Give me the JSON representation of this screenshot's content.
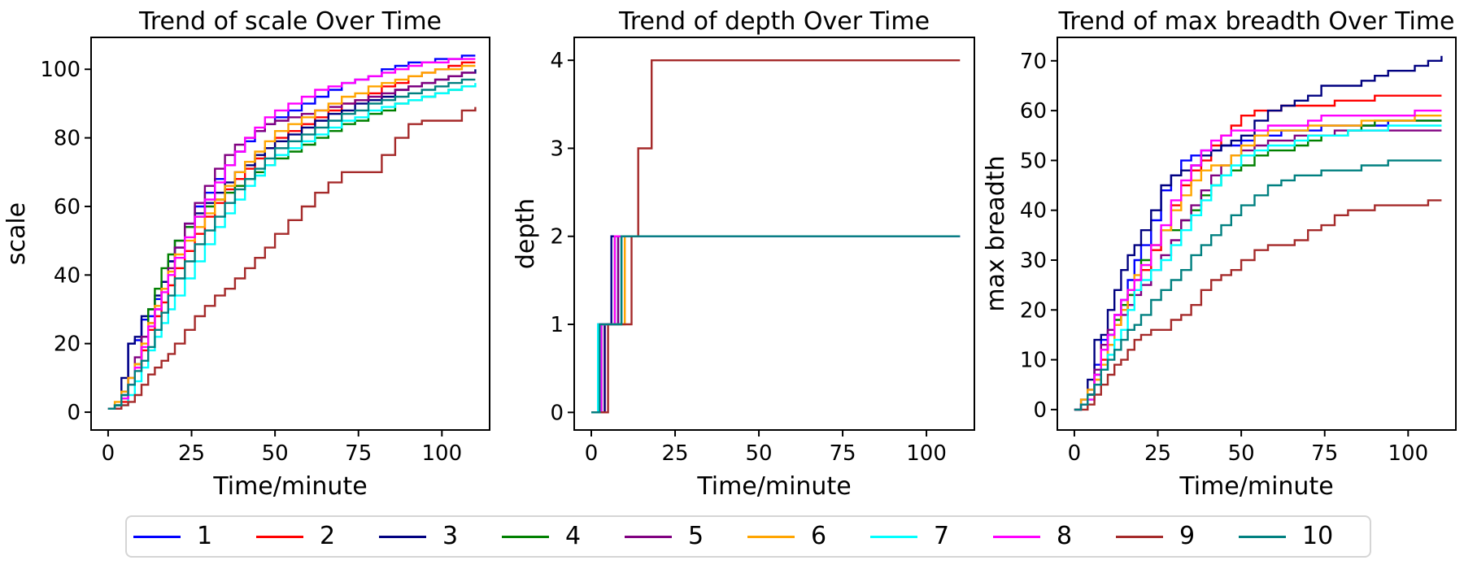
{
  "figure": {
    "background": "#ffffff",
    "xlabel": "Time/minute"
  },
  "legend": {
    "items": [
      {
        "label": "1",
        "color": "#0000ff"
      },
      {
        "label": "2",
        "color": "#ff0000"
      },
      {
        "label": "3",
        "color": "#000080"
      },
      {
        "label": "4",
        "color": "#008000"
      },
      {
        "label": "5",
        "color": "#800080"
      },
      {
        "label": "6",
        "color": "#ffa500"
      },
      {
        "label": "7",
        "color": "#00ffff"
      },
      {
        "label": "8",
        "color": "#ff00ff"
      },
      {
        "label": "9",
        "color": "#a52a2a"
      },
      {
        "label": "10",
        "color": "#008080"
      }
    ]
  },
  "chart_data": [
    {
      "type": "line",
      "step": true,
      "title": "Trend of scale Over Time",
      "xlabel": "Time/minute",
      "ylabel": "scale",
      "xlim": [
        -5.1,
        114.3
      ],
      "ylim": [
        -5.2,
        109.3
      ],
      "xticks": [
        0,
        25,
        50,
        75,
        100
      ],
      "yticks": [
        0,
        20,
        40,
        60,
        80,
        100
      ],
      "x": [
        0,
        2,
        4,
        6,
        8,
        10,
        12,
        14,
        16,
        18,
        20,
        23,
        26,
        29,
        32,
        35,
        38,
        41,
        44,
        47,
        50,
        54,
        58,
        62,
        66,
        70,
        74,
        78,
        82,
        86,
        90,
        94,
        98,
        102,
        106,
        110
      ],
      "series": [
        {
          "name": "1",
          "color": "#0000ff",
          "y": [
            1,
            1,
            6,
            20,
            21,
            27,
            28,
            33,
            38,
            44,
            48,
            55,
            60,
            64,
            68,
            72,
            76,
            79,
            82,
            84,
            86,
            88,
            90,
            92,
            94,
            96,
            97,
            98,
            100,
            101,
            102,
            102,
            103,
            103,
            104,
            104
          ]
        },
        {
          "name": "2",
          "color": "#ff0000",
          "y": [
            1,
            1,
            3,
            8,
            13,
            18,
            24,
            28,
            32,
            37,
            42,
            47,
            52,
            57,
            61,
            65,
            68,
            71,
            74,
            77,
            80,
            82,
            84,
            86,
            88,
            90,
            91,
            93,
            95,
            96,
            98,
            99,
            100,
            101,
            102,
            102
          ]
        },
        {
          "name": "3",
          "color": "#000080",
          "y": [
            1,
            2,
            10,
            20,
            22,
            28,
            30,
            34,
            38,
            44,
            50,
            54,
            58,
            61,
            64,
            67,
            70,
            72,
            75,
            77,
            79,
            81,
            83,
            85,
            87,
            88,
            90,
            91,
            92,
            94,
            95,
            96,
            97,
            98,
            99,
            100
          ]
        },
        {
          "name": "4",
          "color": "#008000",
          "y": [
            1,
            2,
            4,
            8,
            14,
            22,
            30,
            36,
            42,
            46,
            50,
            54,
            57,
            60,
            62,
            64,
            66,
            68,
            70,
            72,
            74,
            76,
            78,
            80,
            82,
            84,
            85,
            87,
            88,
            90,
            91,
            92,
            93,
            94,
            95,
            95
          ]
        },
        {
          "name": "5",
          "color": "#800080",
          "y": [
            1,
            1,
            5,
            10,
            16,
            22,
            26,
            30,
            36,
            42,
            48,
            55,
            61,
            66,
            71,
            75,
            78,
            80,
            82,
            84,
            85,
            86,
            87,
            88,
            89,
            90,
            91,
            92,
            93,
            94,
            95,
            96,
            97,
            98,
            99,
            99
          ]
        },
        {
          "name": "6",
          "color": "#ffa500",
          "y": [
            1,
            3,
            6,
            10,
            14,
            20,
            26,
            31,
            36,
            41,
            46,
            50,
            54,
            58,
            62,
            66,
            70,
            73,
            76,
            79,
            82,
            84,
            86,
            88,
            90,
            92,
            93,
            95,
            96,
            97,
            98,
            99,
            100,
            100,
            101,
            101
          ]
        },
        {
          "name": "7",
          "color": "#00ffff",
          "y": [
            1,
            1,
            2,
            5,
            9,
            13,
            18,
            22,
            26,
            30,
            34,
            39,
            44,
            49,
            54,
            58,
            62,
            66,
            69,
            72,
            75,
            77,
            79,
            81,
            83,
            85,
            86,
            88,
            89,
            90,
            91,
            92,
            93,
            94,
            95,
            96
          ]
        },
        {
          "name": "8",
          "color": "#ff00ff",
          "y": [
            1,
            1,
            4,
            8,
            13,
            19,
            25,
            30,
            35,
            40,
            45,
            51,
            57,
            62,
            67,
            72,
            76,
            80,
            83,
            86,
            88,
            90,
            92,
            94,
            95,
            96,
            97,
            98,
            99,
            100,
            101,
            102,
            102,
            103,
            103,
            103
          ]
        },
        {
          "name": "9",
          "color": "#a52a2a",
          "y": [
            1,
            1,
            2,
            3,
            5,
            8,
            11,
            13,
            15,
            17,
            20,
            24,
            28,
            31,
            34,
            36,
            39,
            42,
            45,
            48,
            52,
            56,
            60,
            64,
            67,
            70,
            70,
            70,
            75,
            80,
            84,
            85,
            85,
            85,
            88,
            89
          ]
        },
        {
          "name": "10",
          "color": "#008080",
          "y": [
            1,
            2,
            5,
            8,
            12,
            15,
            19,
            24,
            29,
            34,
            39,
            44,
            49,
            53,
            57,
            61,
            65,
            68,
            71,
            74,
            77,
            79,
            81,
            83,
            85,
            87,
            88,
            90,
            91,
            92,
            93,
            94,
            95,
            96,
            97,
            97
          ]
        }
      ]
    },
    {
      "type": "line",
      "step": true,
      "title": "Trend of depth Over Time",
      "xlabel": "Time/minute",
      "ylabel": "depth",
      "xlim": [
        -5.1,
        114.3
      ],
      "ylim": [
        -0.2,
        4.26
      ],
      "xticks": [
        0,
        25,
        50,
        75,
        100
      ],
      "yticks": [
        0,
        1,
        2,
        3,
        4
      ],
      "series": [
        {
          "name": "1",
          "color": "#0000ff",
          "x": [
            0,
            3,
            8,
            110
          ],
          "y": [
            0,
            1,
            2,
            2
          ]
        },
        {
          "name": "2",
          "color": "#ff0000",
          "x": [
            0,
            4,
            9,
            110
          ],
          "y": [
            0,
            1,
            2,
            2
          ]
        },
        {
          "name": "3",
          "color": "#000080",
          "x": [
            0,
            4,
            6,
            110
          ],
          "y": [
            0,
            1,
            2,
            2
          ]
        },
        {
          "name": "4",
          "color": "#008000",
          "x": [
            0,
            3,
            7,
            110
          ],
          "y": [
            0,
            1,
            2,
            2
          ]
        },
        {
          "name": "5",
          "color": "#800080",
          "x": [
            0,
            2,
            8,
            110
          ],
          "y": [
            0,
            1,
            2,
            2
          ]
        },
        {
          "name": "6",
          "color": "#ffa500",
          "x": [
            0,
            3,
            10,
            110
          ],
          "y": [
            0,
            1,
            2,
            2
          ]
        },
        {
          "name": "7",
          "color": "#00ffff",
          "x": [
            0,
            2,
            9,
            110
          ],
          "y": [
            0,
            1,
            2,
            2
          ]
        },
        {
          "name": "8",
          "color": "#ff00ff",
          "x": [
            0,
            3,
            7,
            110
          ],
          "y": [
            0,
            1,
            2,
            2
          ]
        },
        {
          "name": "9",
          "color": "#a52a2a",
          "x": [
            0,
            5,
            12,
            14,
            18,
            110
          ],
          "y": [
            0,
            1,
            2,
            3,
            4,
            4
          ]
        },
        {
          "name": "10",
          "color": "#008080",
          "x": [
            0,
            2.5,
            9,
            110
          ],
          "y": [
            0,
            1,
            2,
            2
          ]
        }
      ]
    },
    {
      "type": "line",
      "step": true,
      "title": "Trend of max breadth Over Time",
      "xlabel": "Time/minute",
      "ylabel": "max breadth",
      "xlim": [
        -5.1,
        114.3
      ],
      "ylim": [
        -4.1,
        74.7
      ],
      "xticks": [
        0,
        25,
        50,
        75,
        100
      ],
      "yticks": [
        0,
        10,
        20,
        30,
        40,
        50,
        60,
        70
      ],
      "x": [
        0,
        2,
        4,
        6,
        8,
        10,
        12,
        14,
        16,
        18,
        20,
        23,
        26,
        29,
        32,
        35,
        38,
        41,
        44,
        47,
        50,
        54,
        58,
        62,
        66,
        70,
        74,
        78,
        82,
        86,
        90,
        94,
        98,
        102,
        106,
        110
      ],
      "series": [
        {
          "name": "1",
          "color": "#0000ff",
          "y": [
            0,
            1,
            4,
            9,
            14,
            15,
            19,
            22,
            26,
            30,
            33,
            38,
            44,
            47,
            50,
            51,
            52,
            52,
            53,
            53,
            54,
            55,
            55,
            56,
            56,
            56,
            57,
            57,
            57,
            57,
            57,
            58,
            58,
            58,
            58,
            58
          ]
        },
        {
          "name": "2",
          "color": "#ff0000",
          "y": [
            0,
            1,
            3,
            6,
            10,
            13,
            17,
            20,
            23,
            26,
            28,
            32,
            36,
            41,
            45,
            48,
            50,
            53,
            55,
            57,
            59,
            60,
            60,
            61,
            61,
            61,
            61,
            62,
            62,
            62,
            63,
            63,
            63,
            63,
            63,
            63
          ]
        },
        {
          "name": "3",
          "color": "#000080",
          "y": [
            0,
            2,
            6,
            14,
            15,
            20,
            24,
            28,
            31,
            33,
            36,
            40,
            45,
            47,
            48,
            49,
            51,
            52,
            53,
            54,
            55,
            58,
            60,
            61,
            62,
            63,
            65,
            65,
            65,
            66,
            67,
            68,
            68,
            69,
            70,
            71
          ]
        },
        {
          "name": "4",
          "color": "#008000",
          "y": [
            0,
            1,
            3,
            7,
            12,
            15,
            18,
            21,
            23,
            26,
            30,
            33,
            36,
            36,
            38,
            40,
            43,
            45,
            47,
            48,
            49,
            51,
            52,
            52,
            53,
            54,
            55,
            55,
            56,
            57,
            58,
            58,
            58,
            58,
            58,
            58
          ]
        },
        {
          "name": "5",
          "color": "#800080",
          "y": [
            0,
            1,
            3,
            8,
            13,
            16,
            19,
            19,
            21,
            23,
            25,
            28,
            31,
            34,
            38,
            41,
            44,
            47,
            49,
            51,
            52,
            53,
            54,
            54,
            55,
            55,
            55,
            56,
            56,
            56,
            56,
            56,
            56,
            56,
            56,
            56
          ]
        },
        {
          "name": "6",
          "color": "#ffa500",
          "y": [
            0,
            2,
            4,
            6,
            9,
            13,
            17,
            20,
            24,
            27,
            29,
            33,
            36,
            40,
            43,
            46,
            48,
            49,
            49,
            51,
            53,
            55,
            56,
            56,
            56,
            57,
            57,
            57,
            57,
            58,
            58,
            58,
            58,
            59,
            59,
            59
          ]
        },
        {
          "name": "7",
          "color": "#00ffff",
          "y": [
            0,
            1,
            2,
            5,
            8,
            11,
            14,
            16,
            20,
            24,
            26,
            28,
            30,
            33,
            36,
            39,
            42,
            45,
            47,
            49,
            51,
            52,
            53,
            53,
            54,
            55,
            55,
            55,
            56,
            56,
            56,
            57,
            57,
            57,
            57,
            57
          ]
        },
        {
          "name": "8",
          "color": "#ff00ff",
          "y": [
            0,
            1,
            2,
            7,
            12,
            15,
            19,
            22,
            24,
            26,
            29,
            33,
            37,
            42,
            46,
            49,
            52,
            54,
            55,
            56,
            56,
            56,
            57,
            57,
            57,
            58,
            59,
            59,
            59,
            59,
            59,
            59,
            59,
            60,
            60,
            60
          ]
        },
        {
          "name": "9",
          "color": "#a52a2a",
          "y": [
            0,
            0,
            1,
            3,
            5,
            7,
            9,
            10,
            12,
            14,
            15,
            16,
            16,
            18,
            19,
            21,
            24,
            26,
            27,
            28,
            30,
            32,
            33,
            33,
            34,
            36,
            37,
            39,
            40,
            40,
            41,
            41,
            41,
            41,
            42,
            42
          ]
        },
        {
          "name": "10",
          "color": "#008080",
          "y": [
            0,
            1,
            3,
            5,
            8,
            10,
            12,
            14,
            16,
            17,
            19,
            22,
            24,
            26,
            28,
            31,
            33,
            35,
            37,
            39,
            41,
            43,
            45,
            46,
            47,
            47,
            48,
            48,
            48,
            49,
            49,
            50,
            50,
            50,
            50,
            50
          ]
        }
      ]
    }
  ]
}
